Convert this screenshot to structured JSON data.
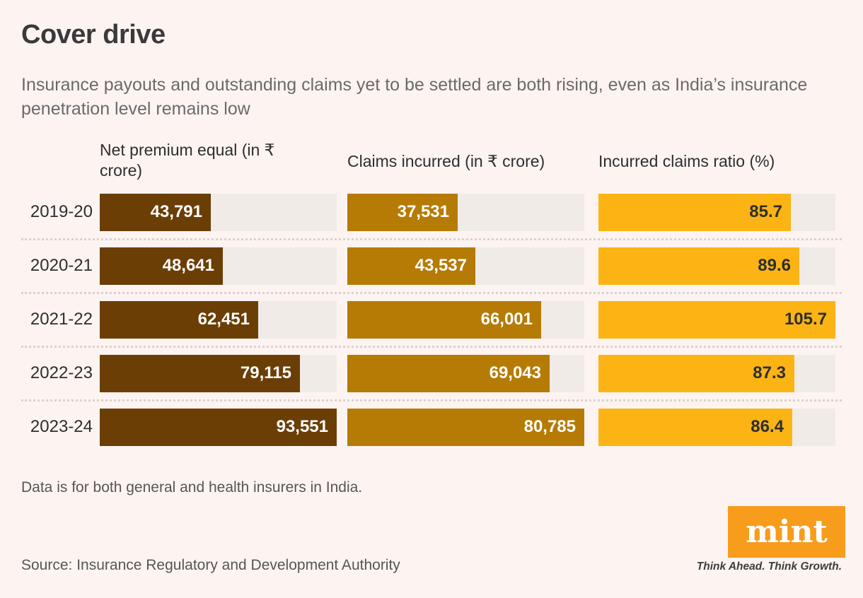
{
  "page": {
    "title": "Cover drive",
    "subtitle": "Insurance payouts and outstanding claims yet to be settled are both rising, even as India’s insurance penetration level remains low",
    "footnote": "Data is for both general and health insurers in India.",
    "source": "Source: Insurance Regulatory and Development Authority"
  },
  "branding": {
    "logo_text": "mint",
    "tagline": "Think Ahead. Think Growth.",
    "logo_color": "#f89c1c"
  },
  "chart_data": {
    "type": "bar",
    "orientation": "horizontal",
    "grid": false,
    "legend_position": "none",
    "track_color": "#f0ebe7",
    "categories": [
      "2019-20",
      "2020-21",
      "2021-22",
      "2022-23",
      "2023-24"
    ],
    "series": [
      {
        "name": "Net premium equal (in ₹ crore)",
        "values": [
          43791,
          48641,
          62451,
          79115,
          93551
        ],
        "labels": [
          "43,791",
          "48,641",
          "62,451",
          "79,115",
          "93,551"
        ],
        "axis_max": 93551,
        "bar_color": "#6b3e06",
        "label_color": "#ffffff"
      },
      {
        "name": "Claims incurred (in ₹ crore)",
        "values": [
          37531,
          43537,
          66001,
          69043,
          80785
        ],
        "labels": [
          "37,531",
          "43,537",
          "66,001",
          "69,043",
          "80,785"
        ],
        "axis_max": 80785,
        "bar_color": "#b57b04",
        "label_color": "#ffffff"
      },
      {
        "name": "Incurred claims ratio (%)",
        "values": [
          85.7,
          89.6,
          105.7,
          87.3,
          86.4
        ],
        "labels": [
          "85.7",
          "89.6",
          "105.7",
          "87.3",
          "86.4"
        ],
        "axis_max": 105.7,
        "bar_color": "#fcb415",
        "label_color": "#2e2e2e"
      }
    ]
  }
}
